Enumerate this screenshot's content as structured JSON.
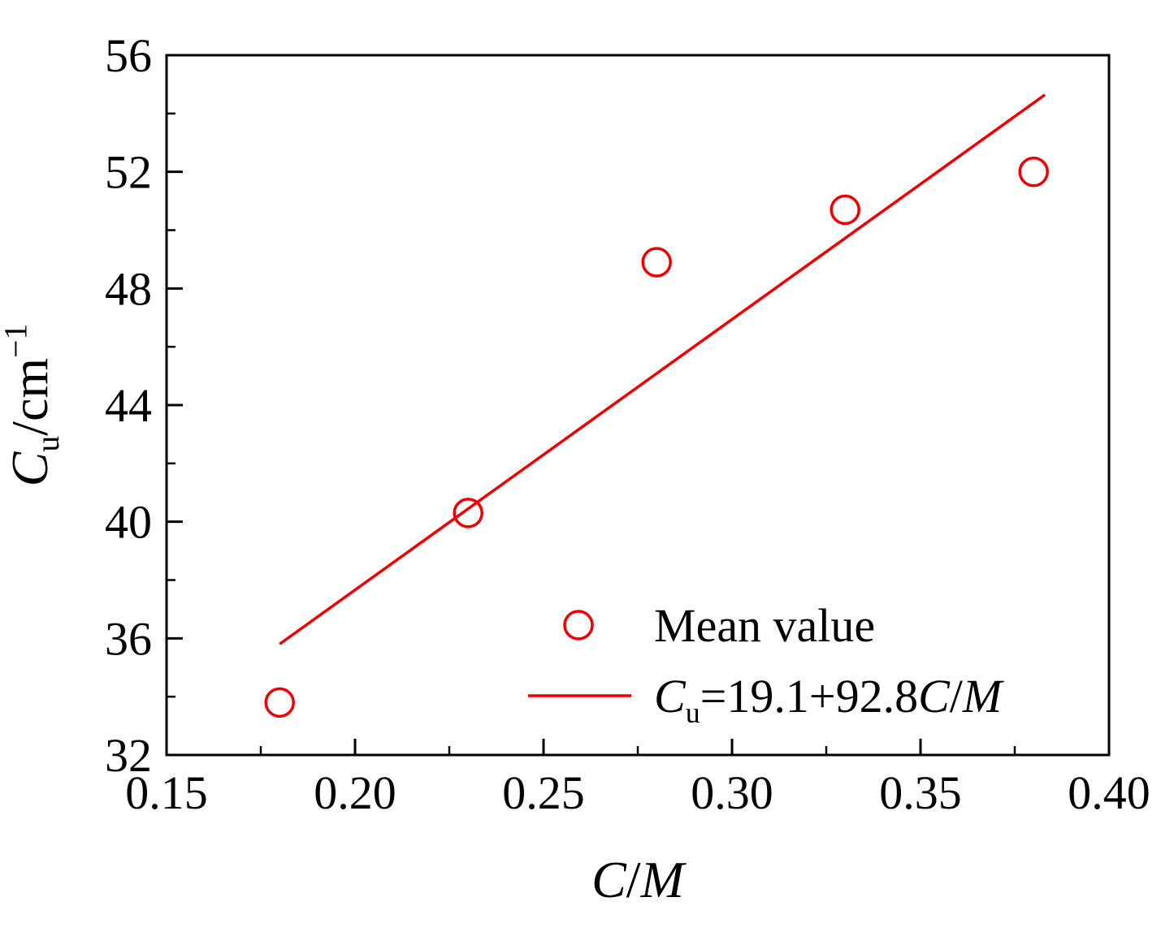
{
  "figure": {
    "background": "#ffffff",
    "frame_color": "#000000",
    "text_color": "#000000",
    "accent_color": "#ee0000"
  },
  "chart_data": {
    "type": "scatter",
    "title": "",
    "xlabel_parts": [
      {
        "t": "C",
        "style": "italic"
      },
      {
        "t": "/",
        "style": "normal"
      },
      {
        "t": "M",
        "style": "italic"
      }
    ],
    "ylabel_parts": [
      {
        "t": "C",
        "style": "italic"
      },
      {
        "t": "u",
        "style": "sub"
      },
      {
        "t": "/cm",
        "style": "normal"
      },
      {
        "t": "−1",
        "style": "sup"
      }
    ],
    "xlim": [
      0.15,
      0.4
    ],
    "ylim": [
      32,
      56
    ],
    "x_major_ticks": [
      0.15,
      0.2,
      0.25,
      0.3,
      0.35,
      0.4
    ],
    "x_tick_labels": [
      "0.15",
      "0.20",
      "0.25",
      "0.30",
      "0.35",
      "0.40"
    ],
    "x_minor_ticks": [
      0.175,
      0.225,
      0.275,
      0.325,
      0.375
    ],
    "y_major_ticks": [
      32,
      36,
      40,
      44,
      48,
      52,
      56
    ],
    "y_tick_labels": [
      "32",
      "36",
      "40",
      "44",
      "48",
      "52",
      "56"
    ],
    "y_minor_ticks": [
      34,
      38,
      42,
      46,
      50,
      54
    ],
    "grid": false,
    "series": [
      {
        "name": "Mean value",
        "type": "scatter",
        "marker": "open-circle",
        "color": "#ee0000",
        "x": [
          0.18,
          0.23,
          0.28,
          0.33,
          0.38
        ],
        "y": [
          33.8,
          40.3,
          48.9,
          50.7,
          52.0
        ]
      },
      {
        "name": "Cu=19.1+92.8C/M",
        "type": "line",
        "color": "#ee0000",
        "equation": {
          "intercept": 19.1,
          "slope": 92.8
        },
        "x_start": 0.18,
        "x_end": 0.383
      }
    ],
    "legend": {
      "position": "inside-bottom-right",
      "entries": [
        {
          "marker": "open-circle",
          "color": "#ee0000",
          "label_parts": [
            {
              "t": "Mean value",
              "style": "normal"
            }
          ]
        },
        {
          "marker": "line",
          "color": "#ee0000",
          "label_parts": [
            {
              "t": "C",
              "style": "italic"
            },
            {
              "t": "u",
              "style": "sub"
            },
            {
              "t": "=19.1+92.8",
              "style": "normal"
            },
            {
              "t": "C",
              "style": "italic"
            },
            {
              "t": "/",
              "style": "normal"
            },
            {
              "t": "M",
              "style": "italic"
            }
          ]
        }
      ]
    }
  }
}
